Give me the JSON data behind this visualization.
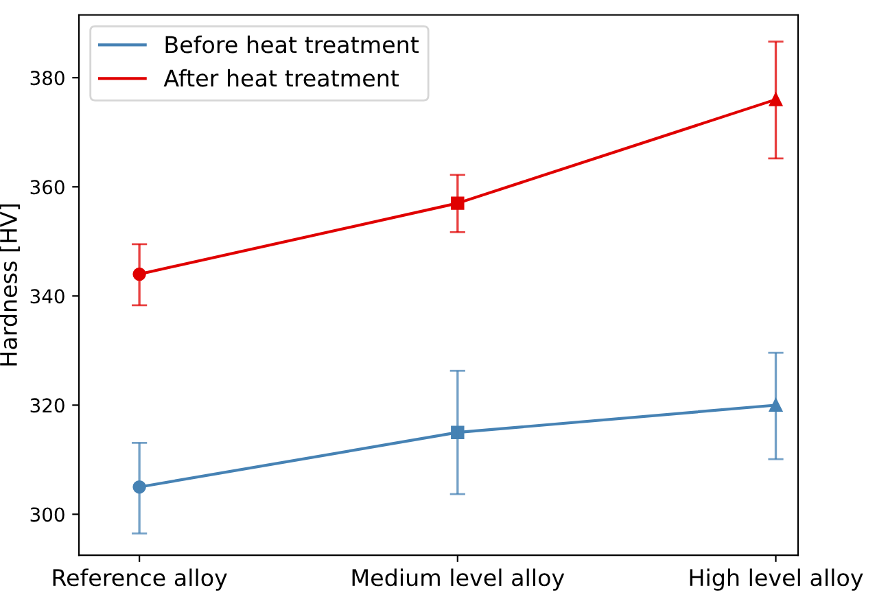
{
  "chart_data": {
    "type": "line",
    "ylabel": "Hardness [HV]",
    "categories": [
      "Reference alloy",
      "Medium level alloy",
      "High level alloy"
    ],
    "ylim": [
      292.5,
      391.5
    ],
    "yticks": [
      300,
      320,
      340,
      360,
      380
    ],
    "grid": false,
    "legend": "top left",
    "series": [
      {
        "name": "Before heat treatment",
        "color": "#4682b4",
        "marker": [
          "circle",
          "square",
          "triangle"
        ],
        "values": [
          305,
          315,
          320
        ],
        "errors": [
          [
            296.5,
            313.1
          ],
          [
            303.7,
            326.3
          ],
          [
            310.1,
            329.6
          ]
        ]
      },
      {
        "name": "After heat treatment",
        "color": "#e00000",
        "marker": [
          "circle",
          "square",
          "triangle"
        ],
        "values": [
          344,
          357,
          376
        ],
        "errors": [
          [
            338.3,
            349.5
          ],
          [
            351.7,
            362.2
          ],
          [
            365.2,
            386.6
          ]
        ]
      }
    ]
  }
}
